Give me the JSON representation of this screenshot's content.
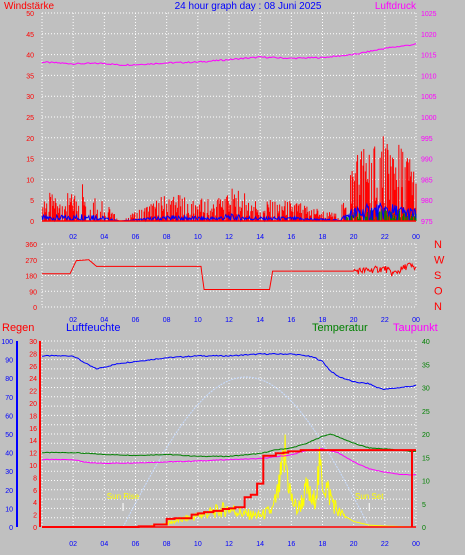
{
  "header": {
    "title": "24 hour graph day : 08 Juni 2025",
    "left_label": "Windstärke",
    "right_label": "Luftdruck"
  },
  "colors": {
    "background": "#c0c0c0",
    "grid": "#ffffff",
    "wind": "#ff0000",
    "gust": "#0000ff",
    "wind_avg": "#008000",
    "pressure": "#ff00ff",
    "direction": "#ff0000",
    "humidity": "#0000ff",
    "temperature": "#008000",
    "dewpoint": "#ff00ff",
    "rain": "#ff0000",
    "solar": "#ffff00",
    "sun_curve": "#c8dcff"
  },
  "x_axis_labels": [
    "02",
    "04",
    "06",
    "08",
    "10",
    "12",
    "14",
    "16",
    "18",
    "20",
    "22",
    "00"
  ],
  "chart_data": [
    {
      "type": "line",
      "title": "24 hour graph day : 08 Juni 2025",
      "left_axis": {
        "label": "Windstärke",
        "ticks": [
          "0",
          "5",
          "10",
          "15",
          "20",
          "25",
          "30",
          "35",
          "40",
          "45",
          "50"
        ],
        "ylim": [
          0,
          50
        ]
      },
      "right_axis": {
        "label": "Luftdruck",
        "ticks": [
          "975",
          "980",
          "985",
          "990",
          "995",
          "1000",
          "1005",
          "1010",
          "1015",
          "1020",
          "1025"
        ],
        "ylim": [
          975,
          1025
        ]
      },
      "x_ticks": [
        "02",
        "04",
        "06",
        "08",
        "10",
        "12",
        "14",
        "16",
        "18",
        "20",
        "22",
        "00"
      ],
      "series": [
        {
          "name": "Luftdruck",
          "x": [
            0,
            2,
            4,
            5,
            6,
            8,
            10,
            12,
            14,
            16,
            18,
            20,
            22,
            24
          ],
          "values": [
            1013.2,
            1012.8,
            1012.9,
            1012.5,
            1012.6,
            1013.0,
            1013.2,
            1013.8,
            1014.4,
            1014.1,
            1014.3,
            1015.0,
            1016.5,
            1017.5
          ]
        },
        {
          "name": "Wind",
          "x": [
            0,
            2,
            3,
            4,
            5,
            8,
            11,
            12,
            14,
            16,
            19,
            20,
            21,
            22,
            23,
            24
          ],
          "values": [
            4,
            4,
            7,
            3,
            0,
            4,
            3,
            5,
            3,
            3,
            1,
            10,
            12,
            13,
            11,
            9
          ]
        }
      ]
    },
    {
      "type": "line",
      "left_axis": {
        "ticks": [
          "0",
          "90",
          "180",
          "270",
          "360"
        ],
        "ylim": [
          0,
          360
        ]
      },
      "right_axis": {
        "ticks": [
          "N",
          "W",
          "S",
          "O",
          "N"
        ]
      },
      "x_ticks": [
        "02",
        "04",
        "06",
        "08",
        "10",
        "12",
        "14",
        "16",
        "18",
        "20",
        "22",
        "00"
      ],
      "series": [
        {
          "x": [
            0,
            1.8,
            2.2,
            3.0,
            3.5,
            10.2,
            10.4,
            14.6,
            14.8,
            20.0,
            21.0,
            22.0,
            22.5,
            23.0,
            23.5,
            24.0
          ],
          "values": [
            190,
            190,
            265,
            270,
            232,
            232,
            100,
            100,
            205,
            205,
            210,
            220,
            190,
            210,
            240,
            220
          ]
        }
      ]
    },
    {
      "type": "line",
      "legend": [
        "Regen",
        "Luftfeuchte",
        "Temperatur",
        "Taupunkt"
      ],
      "axes": {
        "humidity": {
          "ticks": [
            "0",
            "10",
            "20",
            "30",
            "40",
            "50",
            "60",
            "70",
            "80",
            "90",
            "100"
          ],
          "ylim": [
            0,
            100
          ]
        },
        "rain": {
          "ticks": [
            "0",
            "2",
            "4",
            "6",
            "8",
            "10",
            "12",
            "14",
            "16",
            "18",
            "20",
            "22",
            "24",
            "26",
            "28",
            "30"
          ],
          "ylim": [
            0,
            30
          ]
        },
        "temperature": {
          "ticks": [
            "0",
            "5",
            "10",
            "15",
            "20",
            "25",
            "30",
            "35",
            "40"
          ],
          "ylim": [
            0,
            40
          ]
        }
      },
      "x_ticks": [
        "02",
        "04",
        "06",
        "08",
        "10",
        "12",
        "14",
        "16",
        "18",
        "20",
        "22",
        "00"
      ],
      "annotations": [
        "Sun Rise",
        "Sun Set"
      ],
      "series": [
        {
          "name": "Luftfeuchte",
          "x": [
            0,
            2,
            3,
            3.5,
            5,
            8,
            10,
            12,
            14,
            15,
            16,
            17,
            17.5,
            18,
            18.5,
            19,
            20,
            21,
            21.5,
            22,
            23,
            24
          ],
          "values": [
            92,
            92,
            87,
            85,
            88,
            91,
            92,
            92,
            93,
            93,
            93,
            92,
            91,
            89,
            84,
            81,
            78,
            77,
            75,
            74,
            75,
            76
          ]
        },
        {
          "name": "Temperatur",
          "x": [
            0,
            2,
            4,
            6,
            8,
            10,
            12,
            14,
            15,
            16,
            17,
            18,
            18.5,
            19,
            20,
            21,
            22,
            24
          ],
          "values": [
            16,
            16,
            15.6,
            15.4,
            15.6,
            15.2,
            15.2,
            15.8,
            16.6,
            17.0,
            18.0,
            19.5,
            20.0,
            19.4,
            18.0,
            17.0,
            16.8,
            16.2
          ]
        },
        {
          "name": "Taupunkt",
          "x": [
            0,
            2,
            3,
            4,
            6,
            8,
            10,
            12,
            14,
            16,
            17,
            18,
            19,
            20,
            21,
            22,
            23,
            24
          ],
          "values": [
            14.5,
            14.5,
            13.8,
            13.7,
            13.8,
            14.0,
            14.2,
            14.5,
            14.7,
            15.5,
            16.5,
            16.8,
            16.0,
            14.0,
            12.5,
            11.8,
            11.3,
            11.2
          ]
        },
        {
          "name": "Regen",
          "x": [
            0,
            5.2,
            6.2,
            7.2,
            8.0,
            8.5,
            9.0,
            9.6,
            10.0,
            10.4,
            11.0,
            11.6,
            12.0,
            12.4,
            13.0,
            13.4,
            13.8,
            14.2,
            15.0,
            15.5,
            15.8,
            16.0,
            16.6,
            24.0
          ],
          "values": [
            0,
            0,
            0.1,
            0.4,
            1.3,
            1.4,
            1.4,
            2.0,
            2.2,
            2.4,
            2.6,
            2.9,
            3.0,
            3.2,
            4.8,
            5.2,
            7.0,
            11.5,
            11.9,
            12.0,
            12.2,
            12.2,
            12.4,
            12.4
          ]
        }
      ]
    }
  ]
}
